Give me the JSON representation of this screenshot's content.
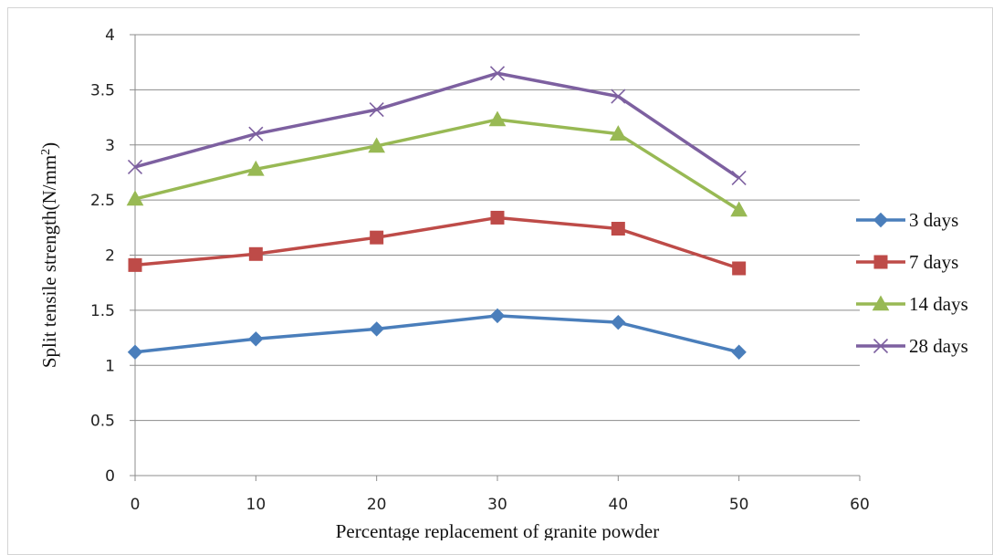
{
  "chart_data": {
    "type": "line",
    "title": "",
    "xlabel": "Percentage replacement of granite powder",
    "ylabel": "Split tensile strength(N/mm",
    "ylabel_superscript": "2",
    "ylabel_suffix": ")",
    "x": [
      0,
      10,
      20,
      30,
      40,
      50
    ],
    "xlim": [
      0,
      60
    ],
    "ylim": [
      0,
      4
    ],
    "x_ticks": [
      "0",
      "10",
      "20",
      "30",
      "40",
      "50",
      "60"
    ],
    "y_ticks": [
      "0",
      "0.5",
      "1",
      "1.5",
      "2",
      "2.5",
      "3",
      "3.5",
      "4"
    ],
    "grid": "horizontal",
    "legend_position": "right",
    "series": [
      {
        "name": "3 days",
        "values": [
          1.12,
          1.24,
          1.33,
          1.45,
          1.39,
          1.12
        ],
        "color": "#4a7ebb",
        "marker": "diamond"
      },
      {
        "name": "7 days",
        "values": [
          1.91,
          2.01,
          2.16,
          2.34,
          2.24,
          1.88
        ],
        "color": "#be4b48",
        "marker": "square"
      },
      {
        "name": "14 days",
        "values": [
          2.51,
          2.78,
          2.99,
          3.23,
          3.1,
          2.41
        ],
        "color": "#98b954",
        "marker": "triangle"
      },
      {
        "name": "28 days",
        "values": [
          2.8,
          3.1,
          3.32,
          3.65,
          3.44,
          2.7
        ],
        "color": "#7d60a0",
        "marker": "x"
      }
    ]
  }
}
